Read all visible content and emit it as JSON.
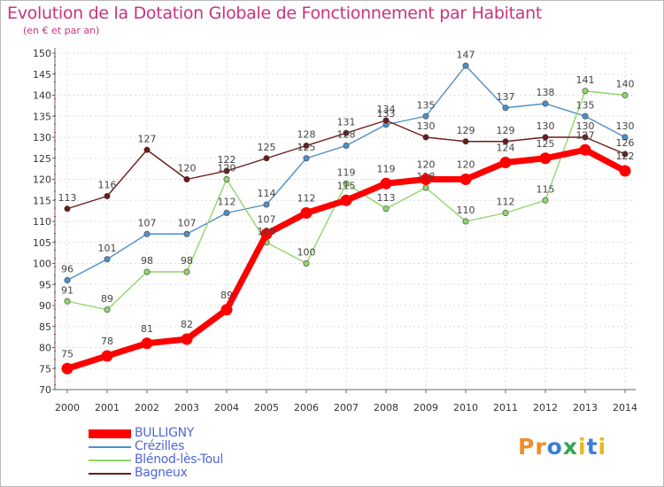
{
  "chart_data": {
    "type": "line",
    "title": "Evolution de la Dotation Globale de Fonctionnement par Habitant",
    "subtitle": "(en € et par an)",
    "x": [
      "2000",
      "2001",
      "2002",
      "2003",
      "2004",
      "2005",
      "2006",
      "2007",
      "2008",
      "2009",
      "2010",
      "2011",
      "2012",
      "2013",
      "2014"
    ],
    "ylim": [
      70,
      150
    ],
    "yticks": [
      70,
      75,
      80,
      85,
      90,
      95,
      100,
      105,
      110,
      115,
      120,
      125,
      130,
      135,
      140,
      145,
      150
    ],
    "grid": true,
    "legend_position": "bottom-left",
    "series": [
      {
        "name": "BULLIGNY",
        "color": "#ff0000",
        "values": [
          75,
          78,
          81,
          82,
          89,
          107,
          112,
          115,
          119,
          120,
          120,
          124,
          125,
          127,
          122
        ]
      },
      {
        "name": "Crézilles",
        "color": "#4f8fc7",
        "values": [
          96,
          101,
          107,
          107,
          112,
          114,
          125,
          128,
          133,
          135,
          147,
          137,
          138,
          135,
          130
        ]
      },
      {
        "name": "Blénod-lès-Toul",
        "color": "#8fd66a",
        "values": [
          91,
          89,
          98,
          98,
          120,
          105,
          100,
          119,
          113,
          118,
          110,
          112,
          115,
          141,
          140
        ]
      },
      {
        "name": "Bagneux",
        "color": "#6b1a1a",
        "values": [
          113,
          116,
          127,
          120,
          122,
          125,
          128,
          131,
          134,
          130,
          129,
          129,
          130,
          130,
          126
        ]
      }
    ]
  },
  "logo": {
    "text": "Proxiti",
    "colors": [
      "#f28c28",
      "#3a7fd6",
      "#2fa84f",
      "#e8b81e"
    ]
  }
}
